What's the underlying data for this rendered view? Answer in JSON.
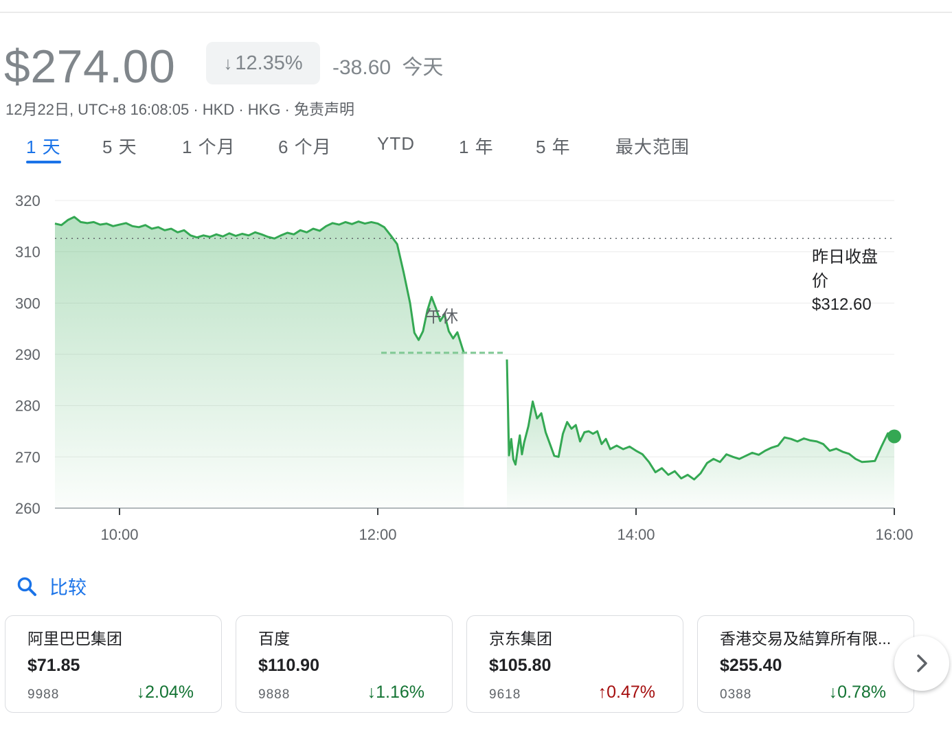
{
  "quote": {
    "price": "$274.00",
    "change_pct": "12.35%",
    "change_abs": "-38.60",
    "change_period": "今天",
    "meta": "12月22日, UTC+8 16:08:05 · HKD · HKG · 免责声明"
  },
  "tabs": [
    {
      "label": "1 天",
      "active": true
    },
    {
      "label": "5 天"
    },
    {
      "label": "1 个月"
    },
    {
      "label": "6 个月"
    },
    {
      "label": "YTD"
    },
    {
      "label": "1 年"
    },
    {
      "label": "5 年"
    },
    {
      "label": "最大范围"
    }
  ],
  "chart_data": {
    "type": "line",
    "title": "",
    "xlabel": "",
    "ylabel": "",
    "ylim": [
      260,
      320
    ],
    "y_ticks": [
      "320",
      "310",
      "300",
      "290",
      "280",
      "270",
      "260"
    ],
    "x_ticks": [
      "10:00",
      "12:00",
      "14:00",
      "16:00"
    ],
    "x_range": [
      "09:30",
      "16:00"
    ],
    "grid": true,
    "lunch_break": {
      "label": "午休",
      "start": "12:00",
      "end": "13:00",
      "price": 290.3
    },
    "previous_close": {
      "label_line1": "昨日收盘",
      "label_line2": "价",
      "label_value": "$312.60",
      "value": 312.6
    },
    "series": [
      {
        "color": "#34a853",
        "points": [
          [
            "09:30",
            315.5
          ],
          [
            "09:33",
            315.2
          ],
          [
            "09:36",
            316.2
          ],
          [
            "09:39",
            316.8
          ],
          [
            "09:42",
            315.8
          ],
          [
            "09:45",
            315.6
          ],
          [
            "09:48",
            315.8
          ],
          [
            "09:51",
            315.3
          ],
          [
            "09:54",
            315.5
          ],
          [
            "09:57",
            315.0
          ],
          [
            "10:00",
            315.3
          ],
          [
            "10:03",
            315.6
          ],
          [
            "10:06",
            315.0
          ],
          [
            "10:09",
            314.8
          ],
          [
            "10:12",
            315.2
          ],
          [
            "10:15",
            314.5
          ],
          [
            "10:18",
            314.8
          ],
          [
            "10:21",
            314.2
          ],
          [
            "10:24",
            314.5
          ],
          [
            "10:27",
            313.8
          ],
          [
            "10:30",
            314.2
          ],
          [
            "10:33",
            313.2
          ],
          [
            "10:36",
            312.8
          ],
          [
            "10:39",
            313.2
          ],
          [
            "10:42",
            312.9
          ],
          [
            "10:45",
            313.4
          ],
          [
            "10:48",
            313.0
          ],
          [
            "10:51",
            313.6
          ],
          [
            "10:54",
            313.1
          ],
          [
            "10:57",
            313.5
          ],
          [
            "11:00",
            313.2
          ],
          [
            "11:03",
            313.8
          ],
          [
            "11:06",
            313.4
          ],
          [
            "11:09",
            312.9
          ],
          [
            "11:12",
            312.6
          ],
          [
            "11:15",
            313.2
          ],
          [
            "11:18",
            313.7
          ],
          [
            "11:21",
            313.4
          ],
          [
            "11:24",
            314.2
          ],
          [
            "11:27",
            313.8
          ],
          [
            "11:30",
            314.5
          ],
          [
            "11:33",
            314.1
          ],
          [
            "11:36",
            315.0
          ],
          [
            "11:39",
            315.6
          ],
          [
            "11:42",
            315.3
          ],
          [
            "11:45",
            315.8
          ],
          [
            "11:48",
            315.4
          ],
          [
            "11:51",
            315.9
          ],
          [
            "11:54",
            315.5
          ],
          [
            "11:57",
            315.8
          ],
          [
            "12:00",
            315.5
          ],
          [
            "12:03",
            314.8
          ],
          [
            "12:06",
            313.2
          ],
          [
            "12:09",
            311.5
          ],
          [
            "12:12",
            306.0
          ],
          [
            "12:15",
            300.0
          ],
          [
            "12:17",
            294.2
          ],
          [
            "12:19",
            292.8
          ],
          [
            "12:21",
            294.5
          ],
          [
            "12:23",
            298.5
          ],
          [
            "12:25",
            301.2
          ],
          [
            "12:27",
            299.0
          ],
          [
            "12:29",
            296.5
          ],
          [
            "12:31",
            297.8
          ],
          [
            "12:33",
            294.5
          ],
          [
            "12:35",
            293.1
          ],
          [
            "12:37",
            294.3
          ],
          [
            "12:40",
            290.3
          ]
        ]
      },
      {
        "color": "#34a853",
        "points": [
          [
            "13:00",
            289.0
          ],
          [
            "13:01",
            270.3
          ],
          [
            "13:02",
            273.5
          ],
          [
            "13:03",
            269.5
          ],
          [
            "13:04",
            268.5
          ],
          [
            "13:05",
            271.5
          ],
          [
            "13:06",
            274.2
          ],
          [
            "13:07",
            270.5
          ],
          [
            "13:08",
            272.8
          ],
          [
            "13:10",
            276.0
          ],
          [
            "13:12",
            280.8
          ],
          [
            "13:14",
            277.5
          ],
          [
            "13:16",
            278.5
          ],
          [
            "13:18",
            274.8
          ],
          [
            "13:20",
            272.5
          ],
          [
            "13:22",
            270.2
          ],
          [
            "13:24",
            270.0
          ],
          [
            "13:26",
            274.5
          ],
          [
            "13:28",
            276.8
          ],
          [
            "13:30",
            275.5
          ],
          [
            "13:32",
            276.2
          ],
          [
            "13:34",
            273.0
          ],
          [
            "13:36",
            274.8
          ],
          [
            "13:38",
            275.0
          ],
          [
            "13:40",
            274.5
          ],
          [
            "13:42",
            275.0
          ],
          [
            "13:44",
            272.5
          ],
          [
            "13:46",
            273.5
          ],
          [
            "13:48",
            271.5
          ],
          [
            "13:51",
            272.2
          ],
          [
            "13:54",
            271.5
          ],
          [
            "13:57",
            272.0
          ],
          [
            "14:00",
            271.2
          ],
          [
            "14:03",
            270.5
          ],
          [
            "14:06",
            269.0
          ],
          [
            "14:09",
            267.0
          ],
          [
            "14:12",
            267.8
          ],
          [
            "14:15",
            266.5
          ],
          [
            "14:18",
            267.2
          ],
          [
            "14:21",
            265.8
          ],
          [
            "14:24",
            266.5
          ],
          [
            "14:27",
            265.6
          ],
          [
            "14:30",
            266.8
          ],
          [
            "14:33",
            268.8
          ],
          [
            "14:36",
            269.6
          ],
          [
            "14:39",
            269.0
          ],
          [
            "14:42",
            270.5
          ],
          [
            "14:45",
            270.0
          ],
          [
            "14:48",
            269.6
          ],
          [
            "14:51",
            270.2
          ],
          [
            "14:54",
            270.8
          ],
          [
            "14:57",
            270.4
          ],
          [
            "15:00",
            271.2
          ],
          [
            "15:03",
            271.8
          ],
          [
            "15:06",
            272.2
          ],
          [
            "15:09",
            273.8
          ],
          [
            "15:12",
            273.5
          ],
          [
            "15:15",
            273.0
          ],
          [
            "15:18",
            273.6
          ],
          [
            "15:21",
            273.2
          ],
          [
            "15:24",
            273.0
          ],
          [
            "15:27",
            272.5
          ],
          [
            "15:30",
            271.2
          ],
          [
            "15:33",
            271.6
          ],
          [
            "15:36",
            271.0
          ],
          [
            "15:39",
            270.6
          ],
          [
            "15:42",
            269.6
          ],
          [
            "15:45",
            269.0
          ],
          [
            "15:48",
            269.1
          ],
          [
            "15:51",
            269.2
          ],
          [
            "15:54",
            272.0
          ],
          [
            "15:57",
            274.6
          ],
          [
            "16:00",
            274.0
          ]
        ]
      }
    ]
  },
  "compare": {
    "label": "比较",
    "icon": "search-icon"
  },
  "cards": [
    {
      "name": "阿里巴巴集团",
      "price": "$71.85",
      "code": "9988",
      "pct": "2.04%",
      "dir": "down"
    },
    {
      "name": "百度",
      "price": "$110.90",
      "code": "9888",
      "pct": "1.16%",
      "dir": "down"
    },
    {
      "name": "京东集团",
      "price": "$105.80",
      "code": "9618",
      "pct": "0.47%",
      "dir": "up"
    },
    {
      "name": "香港交易及結算所有限...",
      "price": "$255.40",
      "code": "0388",
      "pct": "0.78%",
      "dir": "down"
    }
  ],
  "colors": {
    "up": "#a50e0e",
    "down": "#137333",
    "accent": "#1a73e8",
    "line": "#34a853"
  }
}
